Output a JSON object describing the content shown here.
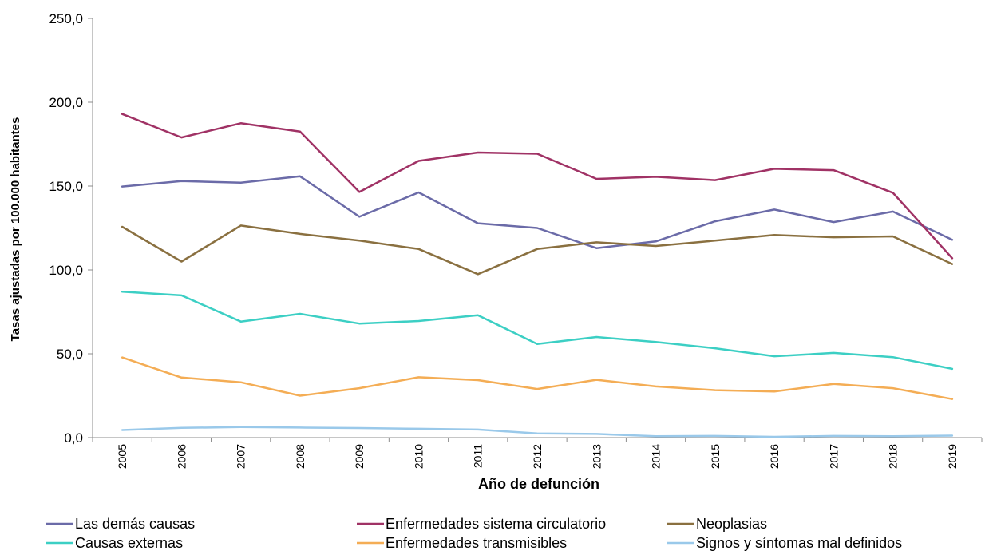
{
  "chart_data": {
    "type": "line",
    "title": "",
    "xlabel": "Año de defunción",
    "ylabel": "Tasas ajustadas por 100.000 habitantes",
    "ylim": [
      0,
      250
    ],
    "yticks": [
      "0,0",
      "50,0",
      "100,0",
      "150,0",
      "200,0",
      "250,0"
    ],
    "x": [
      "2005",
      "2006",
      "2007",
      "2008",
      "2009",
      "2010",
      "2011",
      "2012",
      "2013",
      "2014",
      "2015",
      "2016",
      "2017",
      "2018",
      "2019"
    ],
    "grid": false,
    "legend_position": "bottom",
    "series": [
      {
        "name": "Las demás causas",
        "color": "#6b6ba8",
        "values": [
          149.7,
          153.0,
          152.0,
          155.8,
          131.7,
          146.2,
          127.8,
          125.0,
          113.0,
          117.0,
          129.0,
          136.0,
          128.5,
          134.8,
          118.0
        ]
      },
      {
        "name": "Enfermedades sistema circulatorio",
        "color": "#a03265",
        "values": [
          193.0,
          179.0,
          187.5,
          182.5,
          146.5,
          165.0,
          170.0,
          169.3,
          154.3,
          155.5,
          153.5,
          160.3,
          159.5,
          146.0,
          107.0
        ]
      },
      {
        "name": "Neoplasias",
        "color": "#8a7040",
        "values": [
          125.7,
          105.0,
          126.5,
          121.5,
          117.5,
          112.5,
          97.5,
          112.5,
          116.5,
          114.3,
          117.5,
          120.8,
          119.5,
          120.0,
          103.5
        ]
      },
      {
        "name": "Causas externas",
        "color": "#3ccfc4",
        "values": [
          87.0,
          84.8,
          69.2,
          73.8,
          68.0,
          69.5,
          73.0,
          55.8,
          60.0,
          57.0,
          53.3,
          48.5,
          50.5,
          48.0,
          41.0
        ]
      },
      {
        "name": "Enfermedades transmisibles",
        "color": "#f4ad55",
        "values": [
          47.8,
          35.8,
          33.0,
          25.0,
          29.5,
          36.0,
          34.3,
          29.0,
          34.5,
          30.5,
          28.3,
          27.5,
          32.0,
          29.5,
          23.0
        ]
      },
      {
        "name": "Signos y síntomas mal definidos",
        "color": "#9ac9ea",
        "values": [
          4.5,
          5.8,
          6.3,
          6.0,
          5.7,
          5.3,
          4.8,
          2.5,
          2.2,
          0.8,
          1.0,
          0.5,
          1.0,
          0.8,
          1.2
        ]
      }
    ]
  }
}
